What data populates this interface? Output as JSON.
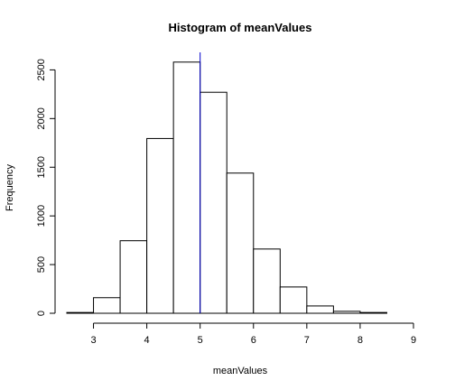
{
  "chart_data": {
    "type": "bar",
    "title": "Histogram of meanValues",
    "xlabel": "meanValues",
    "ylabel": "Frequency",
    "xlim": [
      2.5,
      9
    ],
    "ylim": [
      0,
      2680
    ],
    "bin_edges": [
      2.5,
      3.0,
      3.5,
      4.0,
      4.5,
      5.0,
      5.5,
      6.0,
      6.5,
      7.0,
      7.5,
      8.0,
      8.5,
      9.0
    ],
    "values": [
      8,
      160,
      745,
      1795,
      2580,
      2270,
      1440,
      660,
      270,
      75,
      20,
      8,
      0
    ],
    "x_ticks": [
      3,
      4,
      5,
      6,
      7,
      8,
      9
    ],
    "x_tick_labels": [
      "3",
      "4",
      "5",
      "6",
      "7",
      "8",
      "9"
    ],
    "y_ticks": [
      0,
      500,
      1000,
      1500,
      2000,
      2500
    ],
    "y_tick_labels": [
      "0",
      "500",
      "1000",
      "1500",
      "2000",
      "2500"
    ],
    "vline": {
      "x": 5,
      "color": "#0000cc"
    },
    "bar_fill": "#ffffff",
    "bar_stroke": "#000000",
    "grid": false,
    "legend": "none"
  }
}
